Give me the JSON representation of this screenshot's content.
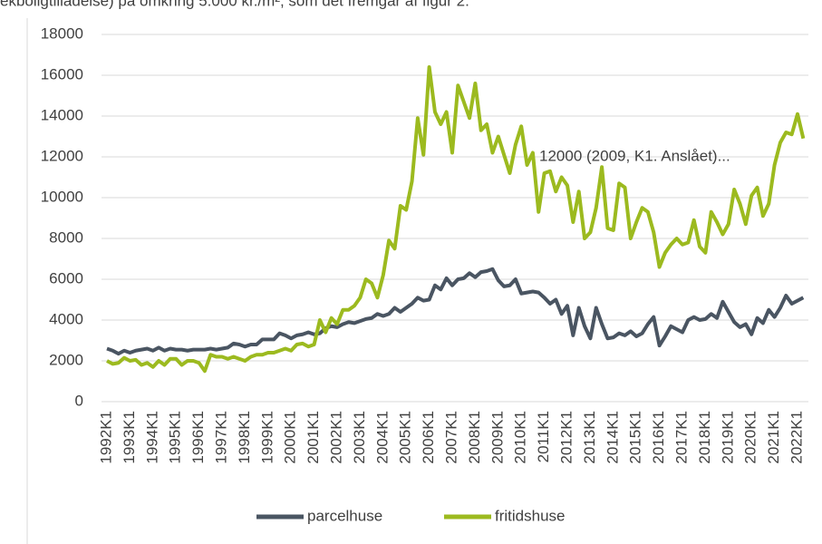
{
  "page_text": "ekboligtilladelse) på omkring 5.000 kr./m², som det fremgår af figur 2.",
  "chart_data": {
    "type": "line",
    "annotation": "12000 (2009, K1. Anslået)...",
    "categories": [
      "1992K1",
      null,
      null,
      null,
      "1993K1",
      null,
      null,
      null,
      "1994K1",
      null,
      null,
      null,
      "1995K1",
      null,
      null,
      null,
      "1996K1",
      null,
      null,
      null,
      "1997K1",
      null,
      null,
      null,
      "1998K1",
      null,
      null,
      null,
      "1999K1",
      null,
      null,
      null,
      "2000K1",
      null,
      null,
      null,
      "2001K1",
      null,
      null,
      null,
      "2002K1",
      null,
      null,
      null,
      "2003K1",
      null,
      null,
      null,
      "2004K1",
      null,
      null,
      null,
      "2005K1",
      null,
      null,
      null,
      "2006K1",
      null,
      null,
      null,
      "2007K1",
      null,
      null,
      null,
      "2008K1",
      null,
      null,
      null,
      "2009K1",
      null,
      null,
      null,
      "2010K1",
      null,
      null,
      null,
      "2011K1",
      null,
      null,
      null,
      "2012K1",
      null,
      null,
      null,
      "2013K1",
      null,
      null,
      null,
      "2014K1",
      null,
      null,
      null,
      "2015K1",
      null,
      null,
      null,
      "2016K1",
      null,
      null,
      null,
      "2017K1",
      null,
      null,
      null,
      "2018K1",
      null,
      null,
      null,
      "2019K1",
      null,
      null,
      null,
      "2020K1",
      null,
      null,
      null,
      "2021K1",
      null,
      null,
      null,
      "2022K1",
      null
    ],
    "series": [
      {
        "name": "parcelhuse",
        "color": "#4a5562",
        "values": [
          2600,
          2500,
          2350,
          2500,
          2400,
          2500,
          2550,
          2600,
          2500,
          2650,
          2500,
          2600,
          2550,
          2550,
          2500,
          2550,
          2550,
          2550,
          2600,
          2550,
          2600,
          2650,
          2850,
          2800,
          2700,
          2800,
          2800,
          3050,
          3050,
          3050,
          3350,
          3250,
          3100,
          3250,
          3300,
          3400,
          3300,
          3350,
          3600,
          3700,
          3650,
          3800,
          3900,
          3850,
          3950,
          4050,
          4100,
          4300,
          4200,
          4300,
          4600,
          4400,
          4600,
          4800,
          5100,
          4950,
          5000,
          5700,
          5500,
          6050,
          5700,
          6000,
          6050,
          6300,
          6100,
          6350,
          6400,
          6500,
          5950,
          5650,
          5700,
          6000,
          5300,
          5350,
          5400,
          5350,
          5100,
          4800,
          5000,
          4300,
          4700,
          3250,
          4600,
          3700,
          3100,
          4600,
          3800,
          3100,
          3150,
          3350,
          3250,
          3450,
          3200,
          3350,
          3800,
          4150,
          2750,
          3200,
          3700,
          3550,
          3400,
          4000,
          4150,
          4000,
          4050,
          4300,
          4100,
          4900,
          4400,
          3900,
          3650,
          3800,
          3300,
          4100,
          3850,
          4500,
          4150,
          4600,
          5200,
          4800,
          4950,
          5100
        ]
      },
      {
        "name": "fritidshuse",
        "color": "#9cba1f",
        "values": [
          2000,
          1850,
          1900,
          2150,
          2000,
          2050,
          1800,
          1900,
          1700,
          2000,
          1800,
          2100,
          2100,
          1800,
          2000,
          2000,
          1900,
          1500,
          2300,
          2200,
          2200,
          2100,
          2200,
          2100,
          2000,
          2200,
          2300,
          2300,
          2400,
          2400,
          2500,
          2600,
          2500,
          2800,
          2850,
          2700,
          2800,
          4000,
          3400,
          4100,
          3800,
          4500,
          4500,
          4700,
          5100,
          6000,
          5800,
          5100,
          6200,
          7900,
          7500,
          9600,
          9400,
          10800,
          13900,
          12100,
          16400,
          14200,
          13600,
          14200,
          12200,
          15500,
          14700,
          13900,
          15600,
          13300,
          13600,
          12200,
          13000,
          12100,
          11200,
          12600,
          13500,
          11600,
          12200,
          9300,
          11200,
          11300,
          10300,
          11000,
          10600,
          8800,
          10300,
          8000,
          8300,
          9500,
          11500,
          8500,
          8400,
          10700,
          10500,
          8000,
          8800,
          9500,
          9300,
          8300,
          6600,
          7300,
          7700,
          8000,
          7700,
          7800,
          8900,
          7600,
          7300,
          9300,
          8800,
          8200,
          8700,
          10400,
          9700,
          8700,
          10100,
          10500,
          9100,
          9700,
          11600,
          12700,
          13200,
          13100,
          14100,
          12900
        ]
      }
    ],
    "ylim": [
      0,
      18000
    ],
    "yticks": [
      0,
      2000,
      4000,
      6000,
      8000,
      10000,
      12000,
      14000,
      16000,
      18000
    ],
    "grid": true,
    "legend": "bottom"
  }
}
